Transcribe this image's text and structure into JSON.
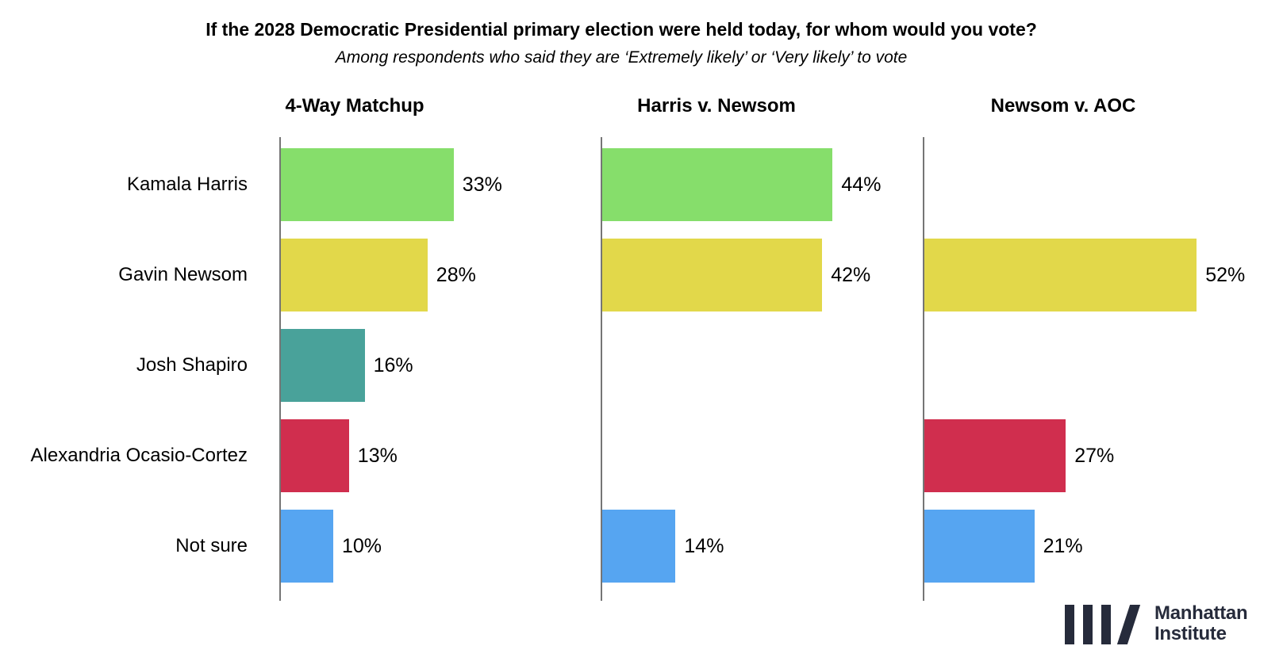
{
  "title": "If the 2028 Democratic Presidential primary election were held today, for whom would you vote?",
  "subtitle": "Among respondents who said they are ‘Extremely likely’ or ‘Very likely’ to vote",
  "chart_data": {
    "type": "bar",
    "orientation": "horizontal",
    "value_unit": "%",
    "title": "If the 2028 Democratic Presidential primary election were held today, for whom would you vote?",
    "subtitle": "Among respondents who said they are ‘Extremely likely’ or ‘Very likely’ to vote",
    "categories": [
      "Kamala Harris",
      "Gavin Newsom",
      "Josh Shapiro",
      "Alexandria Ocasio-Cortez",
      "Not sure"
    ],
    "category_colors": [
      "#86DE6B",
      "#E2D84A",
      "#49A29A",
      "#D02E4E",
      "#56A5F1"
    ],
    "panels": [
      {
        "title": "4-Way Matchup",
        "values": [
          33,
          28,
          16,
          13,
          10
        ]
      },
      {
        "title": "Harris v. Newsom",
        "values": [
          44,
          42,
          null,
          null,
          14
        ]
      },
      {
        "title": "Newsom v. AOC",
        "values": [
          null,
          52,
          null,
          27,
          21
        ]
      }
    ],
    "xlim": [
      0,
      55
    ],
    "grid": false,
    "legend": "none",
    "data_labels": "outside-end",
    "axis_color": "#757575"
  },
  "logo": {
    "line1": "Manhattan",
    "line2": "Institute",
    "color": "#262B3B"
  }
}
